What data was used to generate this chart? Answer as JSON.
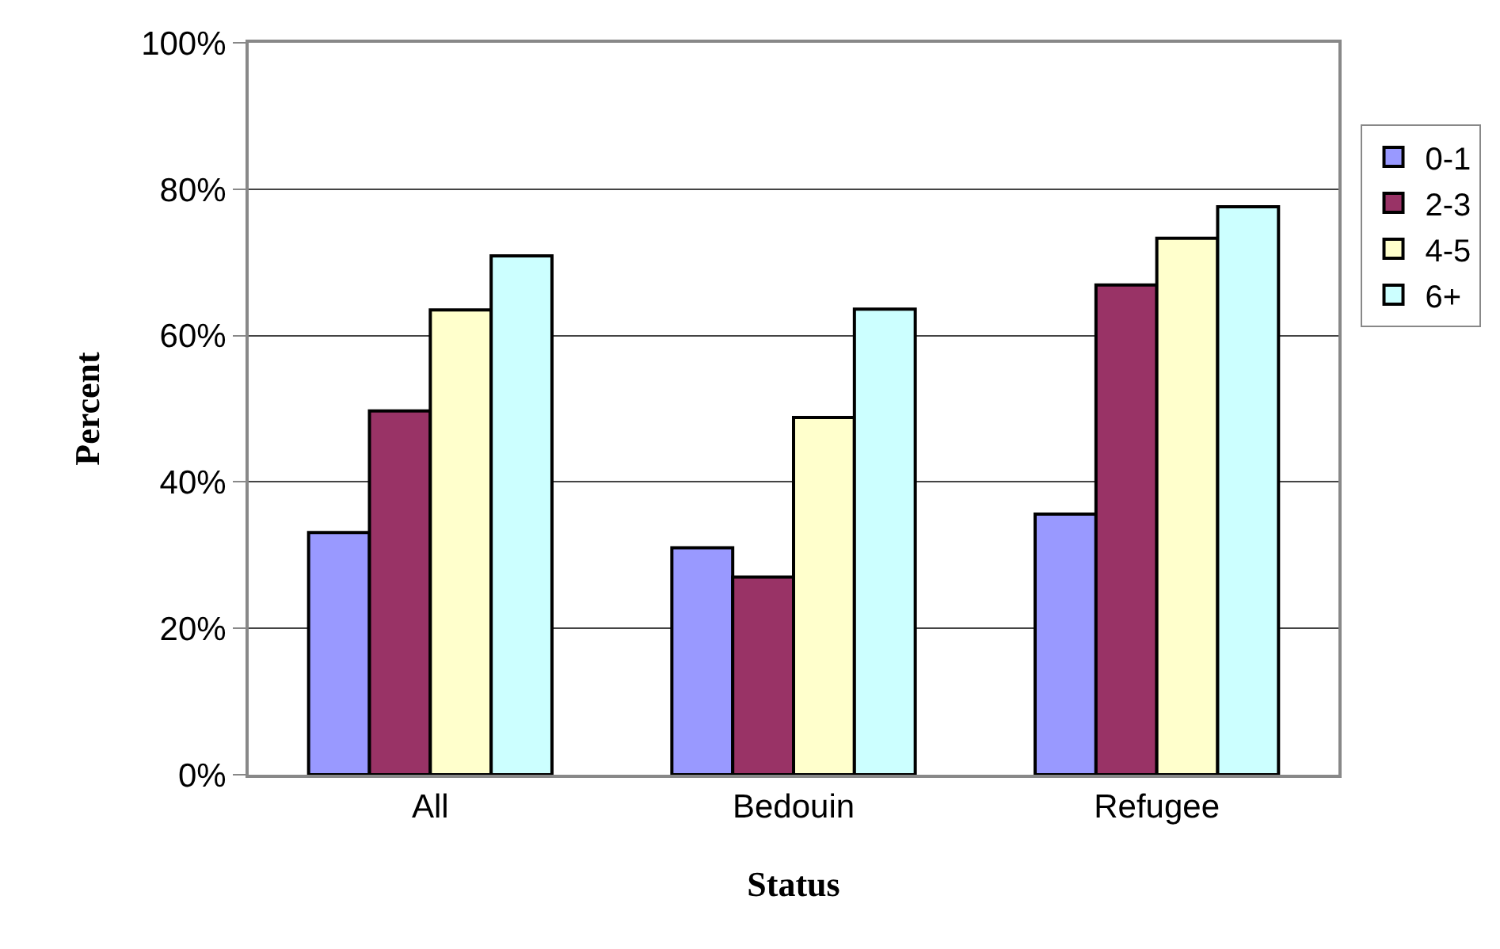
{
  "chart_data": {
    "type": "bar",
    "xlabel": "Status",
    "ylabel": "Percent",
    "categories": [
      "All",
      "Bedouin",
      "Refugee"
    ],
    "series": [
      {
        "name": "0-1",
        "color": "#9999ff",
        "values": [
          33.1,
          31.0,
          35.6
        ]
      },
      {
        "name": "2-3",
        "color": "#993366",
        "values": [
          49.7,
          27.0,
          66.9
        ]
      },
      {
        "name": "4-5",
        "color": "#ffffcc",
        "values": [
          63.5,
          48.8,
          73.3
        ]
      },
      {
        "name": "6+",
        "color": "#ccffff",
        "values": [
          70.9,
          63.6,
          77.6
        ]
      }
    ],
    "ylim": [
      0,
      100
    ],
    "yticks": [
      {
        "value": 0,
        "label": "0%"
      },
      {
        "value": 20,
        "label": "20%"
      },
      {
        "value": 40,
        "label": "40%"
      },
      {
        "value": 60,
        "label": "60%"
      },
      {
        "value": 80,
        "label": "80%"
      },
      {
        "value": 100,
        "label": "100%"
      }
    ],
    "grid": "y",
    "legend": "right"
  }
}
